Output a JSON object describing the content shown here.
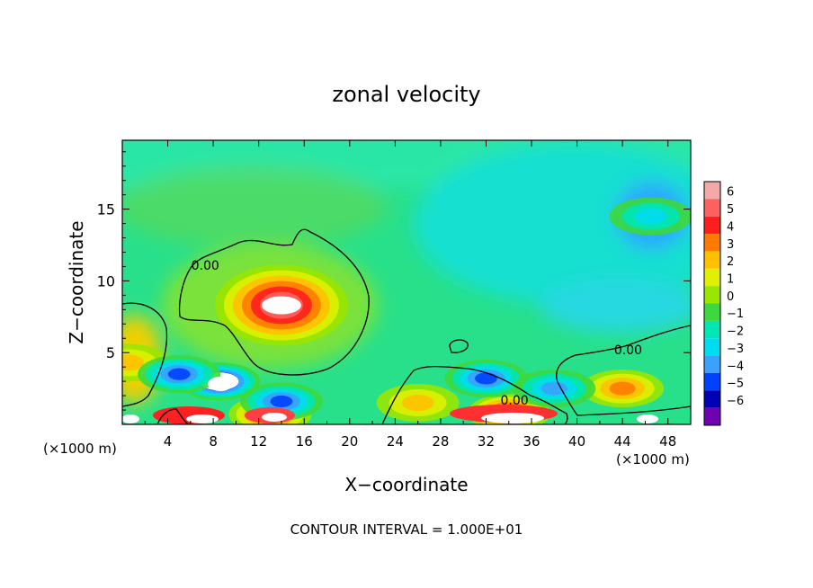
{
  "chart_data": {
    "type": "heatmap",
    "title": "zonal velocity",
    "xlabel": "X−coordinate",
    "ylabel": "Z−coordinate",
    "x_unit_left": "(×1000 m)",
    "x_unit_right": "(×1000 m)",
    "footer": "CONTOUR INTERVAL = 1.000E+01",
    "xlim": [
      0,
      50
    ],
    "ylim": [
      0,
      19.8
    ],
    "x_ticks": [
      4,
      8,
      12,
      16,
      20,
      24,
      28,
      32,
      36,
      40,
      44,
      48
    ],
    "x_tick_labels": [
      "4",
      "8",
      "12",
      "16",
      "20",
      "24",
      "28",
      "32",
      "36",
      "40",
      "44",
      "48"
    ],
    "y_ticks": [
      5,
      10,
      15
    ],
    "y_tick_labels": [
      "5",
      "10",
      "15"
    ],
    "contour_labels": [
      {
        "text": "0.00",
        "x": 7.3,
        "y": 11.1
      },
      {
        "text": "0.00",
        "x": 44.5,
        "y": 5.2
      },
      {
        "text": "0.00",
        "x": 34.5,
        "y": 1.7
      }
    ],
    "colorbar": {
      "levels": [
        6,
        5,
        4,
        3,
        2,
        1,
        0,
        -1,
        -2,
        -3,
        -4,
        -5,
        -6
      ],
      "labels": [
        "6",
        "5",
        "4",
        "3",
        "2",
        "1",
        "0",
        "−1",
        "−2",
        "−3",
        "−4",
        "−5",
        "−6"
      ],
      "colors": [
        "#f4a8a8",
        "#ff6060",
        "#ff1e1e",
        "#ff7a00",
        "#ffc000",
        "#e0f000",
        "#9ae600",
        "#3dd83d",
        "#00e6b4",
        "#00dcf0",
        "#3ca0ff",
        "#0040ff",
        "#0000b4",
        "#7000b0"
      ]
    },
    "features": [
      {
        "kind": "max",
        "x": 14,
        "y": 8.3,
        "value": 6.5
      },
      {
        "kind": "max",
        "x": 0.5,
        "y": 4.3,
        "value": 3
      },
      {
        "kind": "max",
        "x": 44,
        "y": 2.5,
        "value": 3.5
      },
      {
        "kind": "max",
        "x": 26,
        "y": 1.5,
        "value": 3
      },
      {
        "kind": "max",
        "x": 34,
        "y": 0.8,
        "value": 5.5
      },
      {
        "kind": "max",
        "x": 13,
        "y": 0.7,
        "value": 5
      },
      {
        "kind": "min",
        "x": 8.5,
        "y": 3.0,
        "value": -6.5
      },
      {
        "kind": "min",
        "x": 5,
        "y": 3.5,
        "value": -4.5
      },
      {
        "kind": "min",
        "x": 14,
        "y": 1.6,
        "value": -5
      },
      {
        "kind": "min",
        "x": 32,
        "y": 3.2,
        "value": -4.5
      },
      {
        "kind": "min",
        "x": 38,
        "y": 2.5,
        "value": -3.5
      },
      {
        "kind": "min",
        "x": 46.5,
        "y": 14.5,
        "value": -3
      }
    ]
  }
}
